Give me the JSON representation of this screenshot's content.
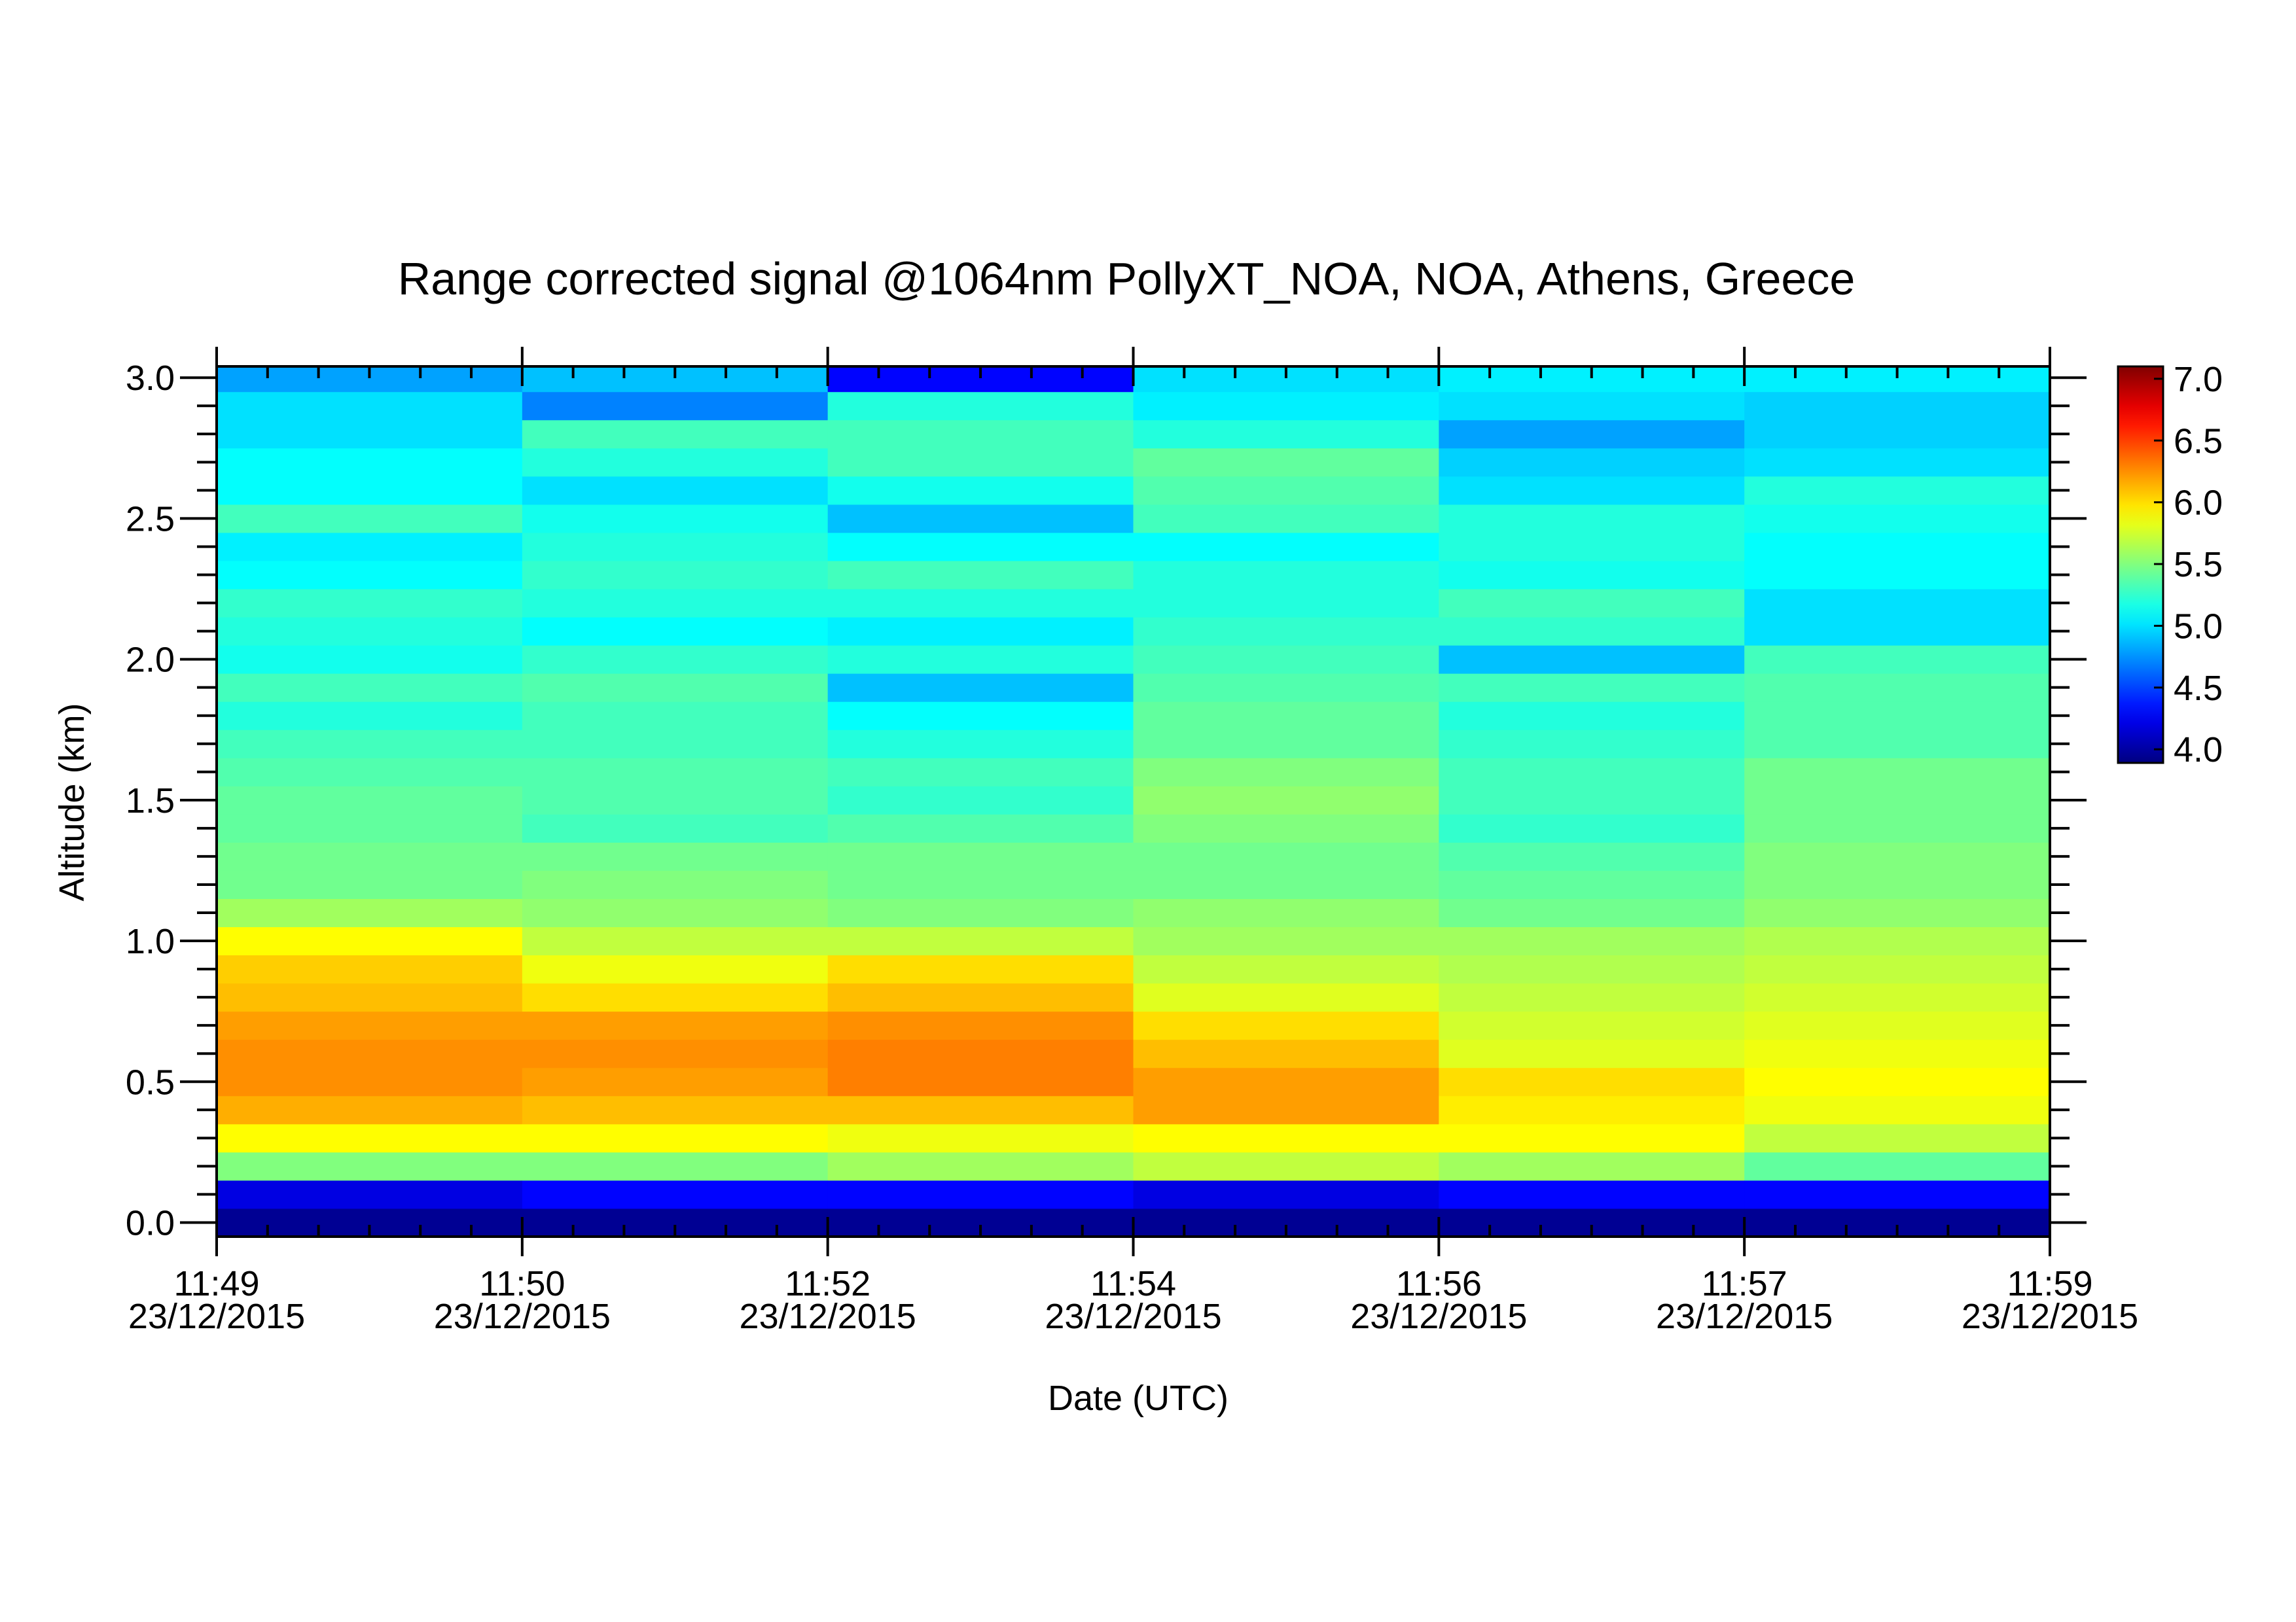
{
  "chart_data": {
    "type": "heatmap",
    "title": "Range corrected signal @1064nm  PollyXT_NOA, NOA, Athens, Greece",
    "xlabel": "Date (UTC)",
    "ylabel": "Altitude (km)",
    "x_edges": [
      {
        "time": "11:49",
        "date": "23/12/2015"
      },
      {
        "time": "11:50",
        "date": "23/12/2015"
      },
      {
        "time": "11:52",
        "date": "23/12/2015"
      },
      {
        "time": "11:54",
        "date": "23/12/2015"
      },
      {
        "time": "11:56",
        "date": "23/12/2015"
      },
      {
        "time": "11:57",
        "date": "23/12/2015"
      },
      {
        "time": "11:59",
        "date": "23/12/2015"
      }
    ],
    "y": [
      0.0,
      0.1,
      0.2,
      0.3,
      0.4,
      0.5,
      0.6,
      0.7,
      0.8,
      0.9,
      1.0,
      1.1,
      1.2,
      1.3,
      1.4,
      1.5,
      1.6,
      1.7,
      1.8,
      1.9,
      2.0,
      2.1,
      2.2,
      2.3,
      2.4,
      2.5,
      2.6,
      2.7,
      2.8,
      2.9,
      3.0
    ],
    "ylim": [
      -0.05,
      3.04
    ],
    "yticks": [
      {
        "value": 0,
        "label": "0.0"
      },
      0.5,
      {
        "value": 1,
        "label": "1.0"
      },
      1.5,
      {
        "value": 2,
        "label": "2.0"
      },
      2.5,
      {
        "value": 3,
        "label": "3.0"
      }
    ],
    "z": [
      [
        3.95,
        4.2,
        5.5,
        5.9,
        6.15,
        6.25,
        6.25,
        6.2,
        6.1,
        6.05,
        5.9,
        5.6,
        5.45,
        5.45,
        5.4,
        5.4,
        5.35,
        5.3,
        5.2,
        5.3,
        5.15,
        5.2,
        5.25,
        5.1,
        5.05,
        5.3,
        5.1,
        5.1,
        5.0,
        5.0,
        4.8
      ],
      [
        3.95,
        4.3,
        5.5,
        5.9,
        6.1,
        6.2,
        6.25,
        6.2,
        6.0,
        5.85,
        5.7,
        5.55,
        5.5,
        5.45,
        5.3,
        5.35,
        5.35,
        5.3,
        5.3,
        5.35,
        5.25,
        5.1,
        5.2,
        5.25,
        5.2,
        5.15,
        5.0,
        5.2,
        5.3,
        4.7,
        4.9
      ],
      [
        3.95,
        4.3,
        5.6,
        5.85,
        6.1,
        6.3,
        6.3,
        6.25,
        6.1,
        6.0,
        5.7,
        5.5,
        5.45,
        5.45,
        5.35,
        5.25,
        5.3,
        5.2,
        5.1,
        4.9,
        5.2,
        5.05,
        5.2,
        5.3,
        5.1,
        4.9,
        5.15,
        5.3,
        5.3,
        5.2,
        4.3
      ],
      [
        3.95,
        4.2,
        5.7,
        5.9,
        6.2,
        6.2,
        6.1,
        6.0,
        5.8,
        5.7,
        5.6,
        5.55,
        5.45,
        5.45,
        5.5,
        5.55,
        5.5,
        5.4,
        5.4,
        5.35,
        5.3,
        5.25,
        5.2,
        5.2,
        5.1,
        5.3,
        5.35,
        5.4,
        5.2,
        5.05,
        5.0
      ],
      [
        3.95,
        4.3,
        5.6,
        5.9,
        5.95,
        6.0,
        5.8,
        5.75,
        5.7,
        5.65,
        5.6,
        5.45,
        5.4,
        5.35,
        5.25,
        5.3,
        5.3,
        5.25,
        5.2,
        5.3,
        4.9,
        5.25,
        5.3,
        5.15,
        5.2,
        5.2,
        5.0,
        4.95,
        4.8,
        5.0,
        5.05
      ],
      [
        3.95,
        4.3,
        5.4,
        5.7,
        5.85,
        5.9,
        5.85,
        5.8,
        5.75,
        5.7,
        5.65,
        5.55,
        5.5,
        5.5,
        5.45,
        5.45,
        5.45,
        5.35,
        5.35,
        5.35,
        5.3,
        5.0,
        5.0,
        5.1,
        5.1,
        5.15,
        5.2,
        5.0,
        4.95,
        4.95,
        5.05
      ]
    ],
    "colormap": "jet",
    "clim": [
      3.89,
      7.1
    ],
    "cticks": [
      {
        "value": 4,
        "label": "4.0"
      },
      4.5,
      {
        "value": 5,
        "label": "5.0"
      },
      5.5,
      {
        "value": 6,
        "label": "6.0"
      },
      6.5,
      {
        "value": 7,
        "label": "7.0"
      }
    ]
  }
}
